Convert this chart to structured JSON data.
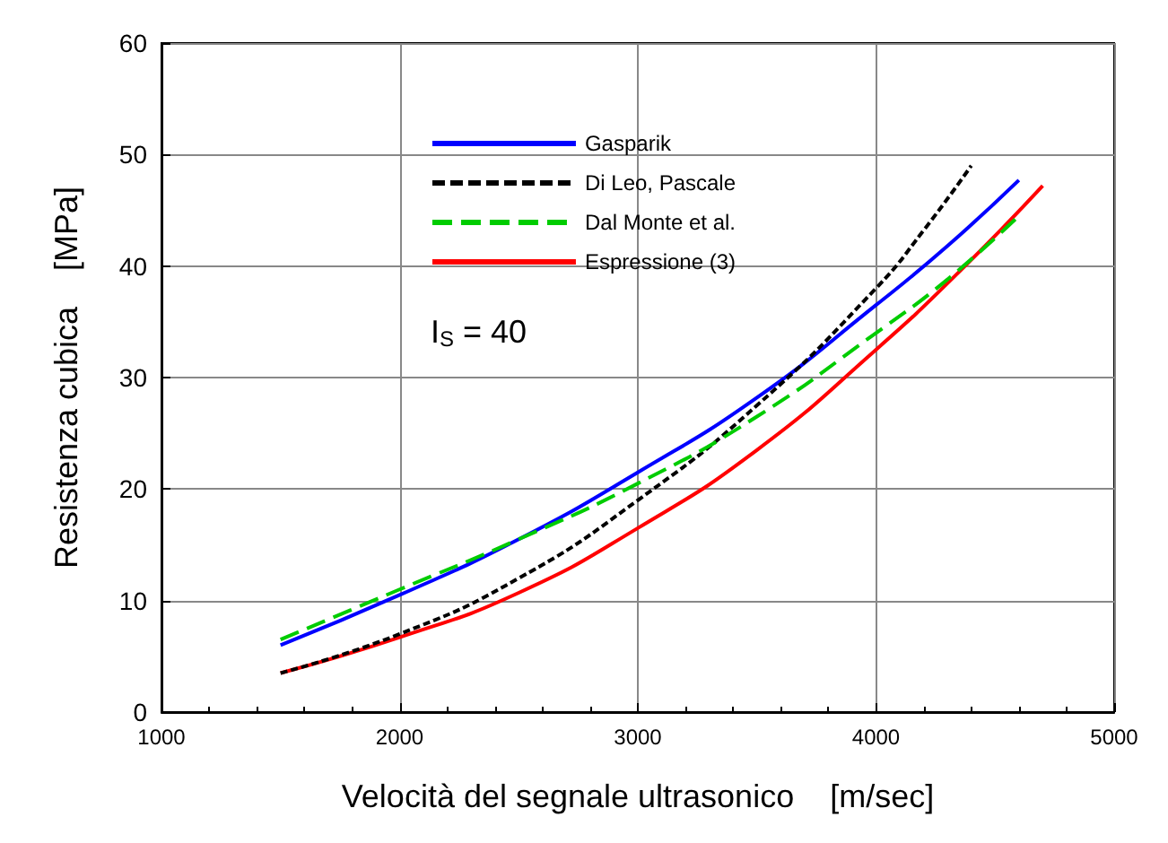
{
  "chart_data": {
    "type": "line",
    "xlabel": "Velocità del segnale ultrasonico    [m/sec]",
    "ylabel": "Resistenza cubica    [MPa]",
    "annotations": [
      "I$_{S}$ = 40"
    ],
    "xlim": [
      1000,
      5000
    ],
    "xticks": [
      {
        "value": 1000,
        "label": "1000"
      },
      {
        "value": 2000,
        "label": "2000"
      },
      {
        "value": 3000,
        "label": "3000"
      },
      {
        "value": 4000,
        "label": "4000"
      },
      {
        "value": 5000,
        "label": "5000"
      }
    ],
    "ylim": [
      0,
      60
    ],
    "yticks": [
      0,
      10,
      20,
      30,
      40,
      50,
      60
    ],
    "grid": true,
    "legend": "top",
    "marker": "none",
    "series": [
      {
        "name": "Gasparik",
        "color": "#0000ff",
        "line_style": "solid",
        "x": [
          1500,
          2000,
          2500,
          3000,
          3500,
          4000,
          4300,
          4600
        ],
        "values": [
          6,
          10.5,
          15.5,
          21.5,
          28.2,
          36.5,
          41.8,
          47.7
        ]
      },
      {
        "name": "Di Leo, Pascale",
        "color": "#000000",
        "line_style": "dashed",
        "x": [
          1500,
          2000,
          2500,
          3000,
          3500,
          4000,
          4200,
          4400
        ],
        "values": [
          3.5,
          7,
          12,
          19,
          27.5,
          38,
          43.2,
          49
        ]
      },
      {
        "name": "Dal Monte et al.",
        "color": "#00cc00",
        "line_style": "dashed",
        "x": [
          1500,
          2000,
          2500,
          3000,
          3500,
          4000,
          4300,
          4600
        ],
        "values": [
          6.5,
          11,
          15.5,
          20.5,
          26.5,
          34,
          38.8,
          44.5
        ]
      },
      {
        "name": "Espressione (3)",
        "color": "#ff0000",
        "line_style": "solid",
        "x": [
          1500,
          2000,
          2500,
          3000,
          3500,
          4000,
          4350,
          4700
        ],
        "values": [
          3.5,
          6.7,
          10.7,
          16.5,
          23.5,
          32.5,
          39.5,
          47.2
        ]
      }
    ]
  }
}
